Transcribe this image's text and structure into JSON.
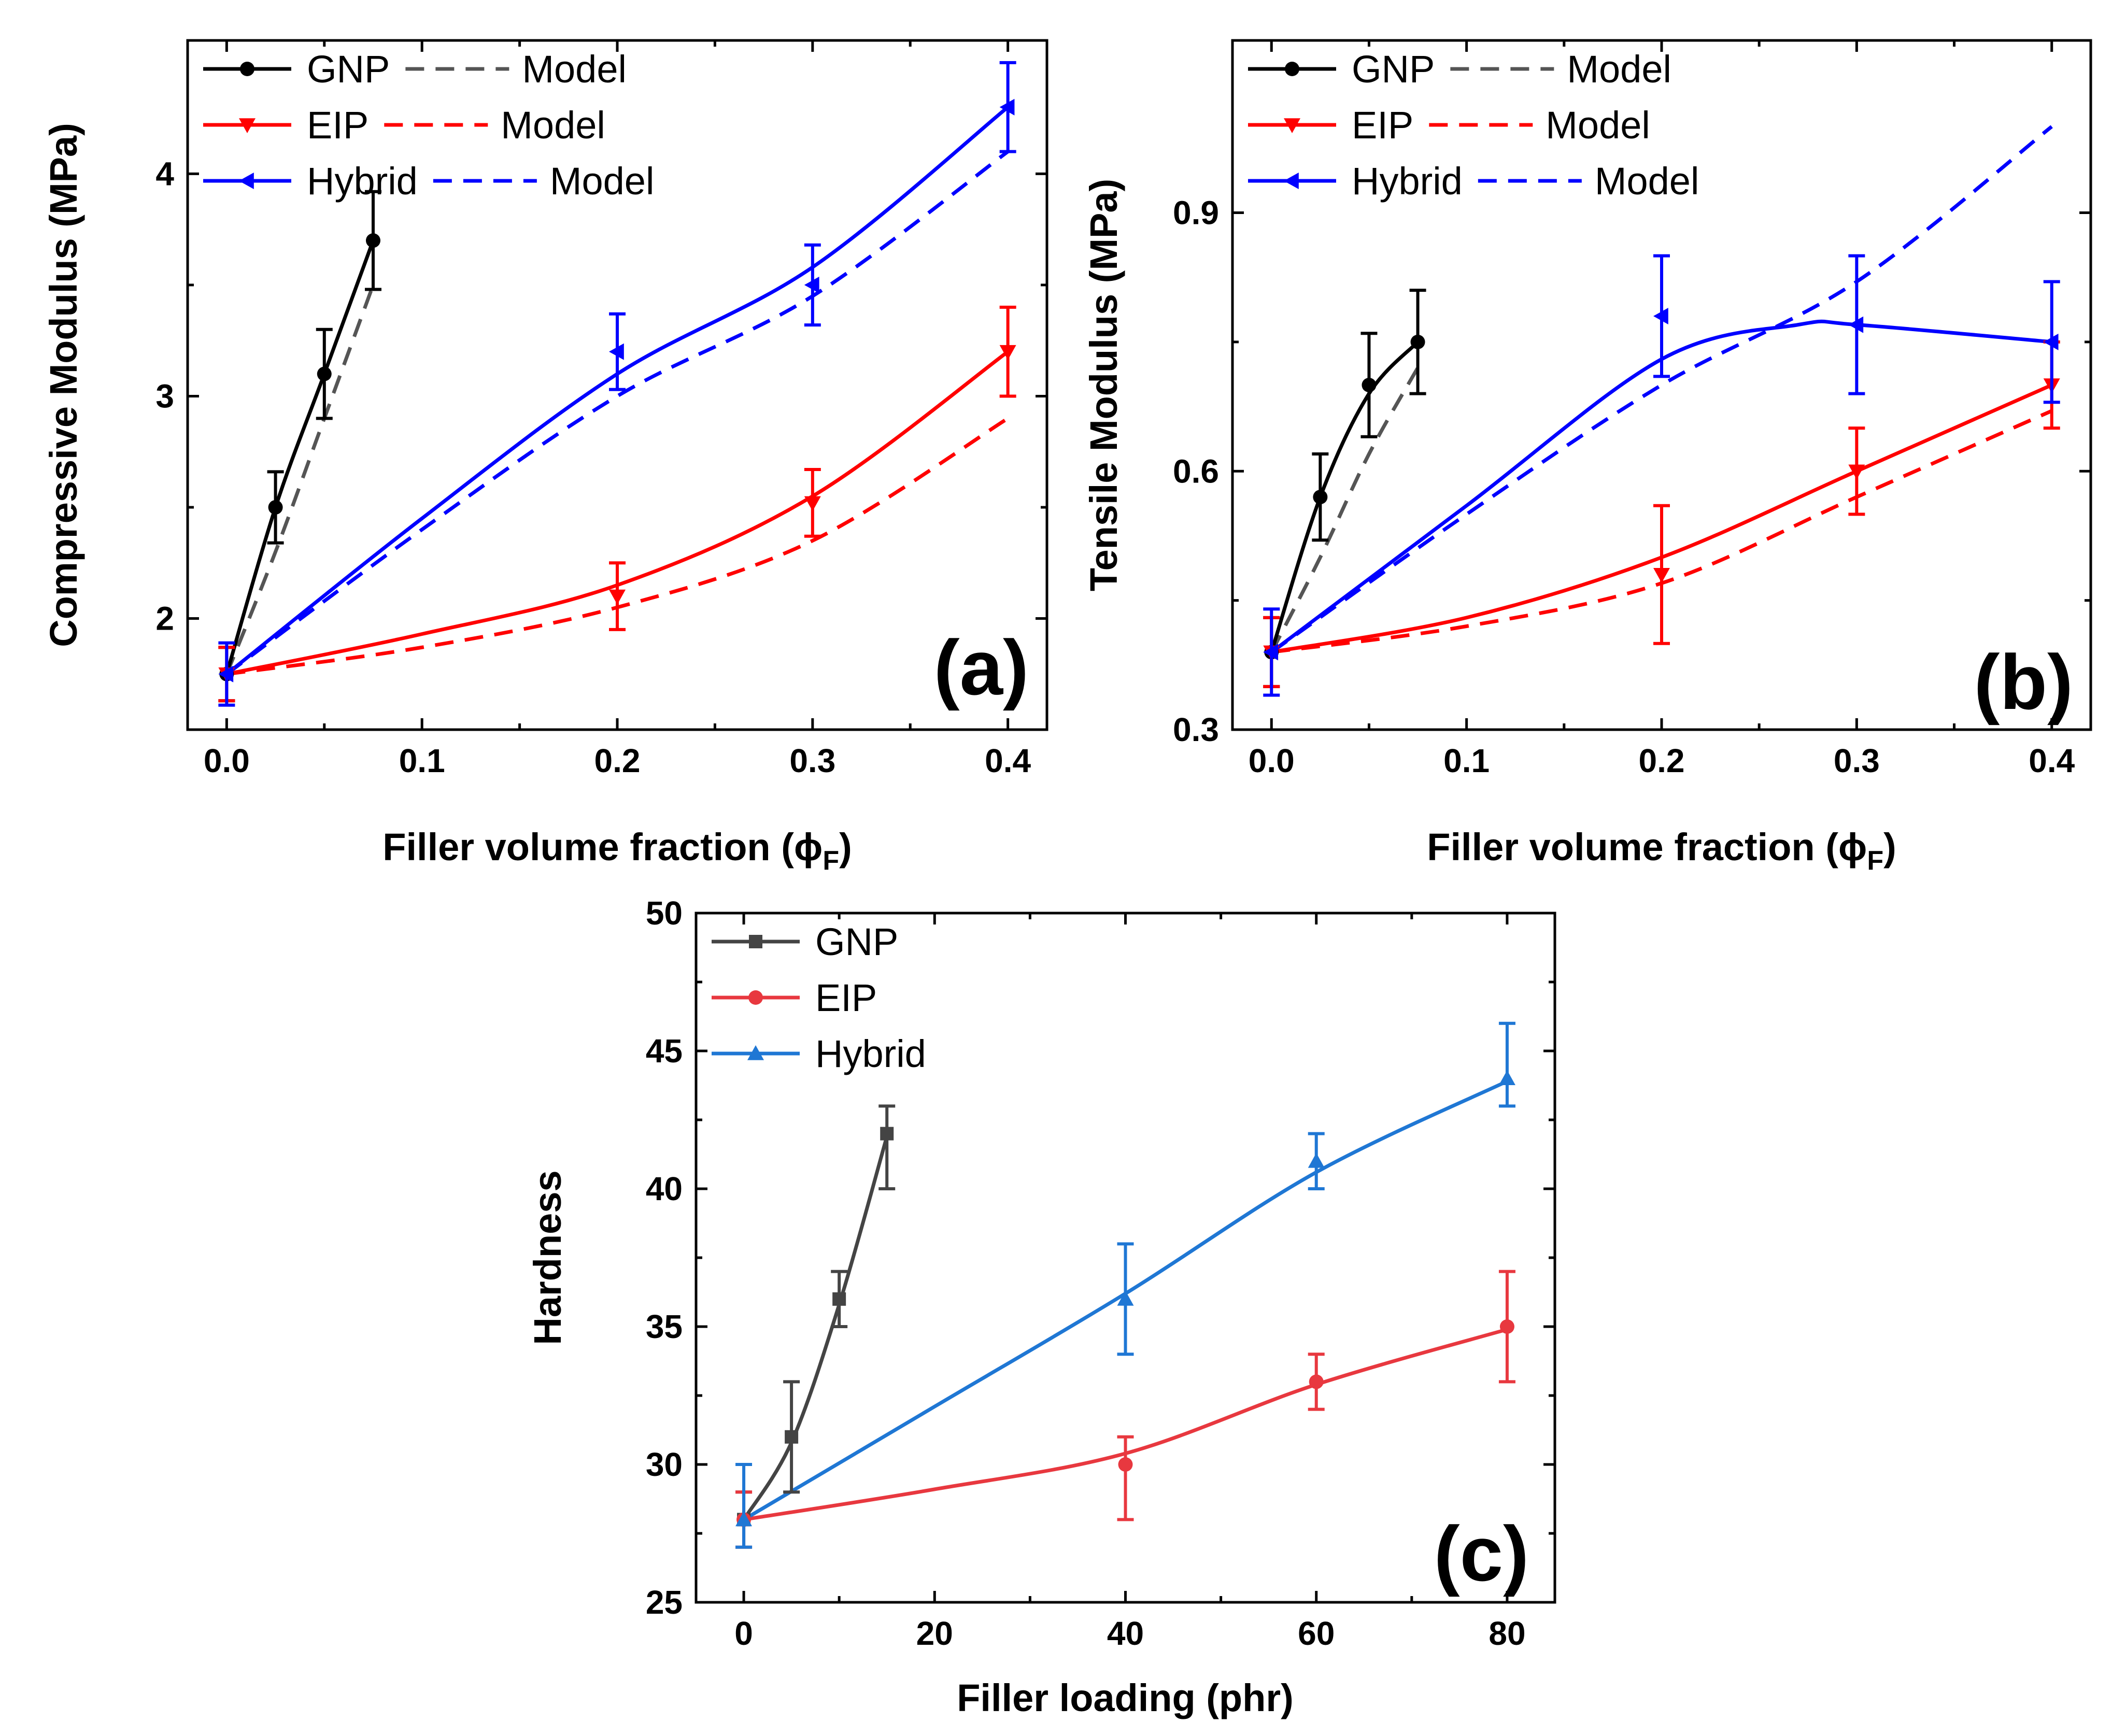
{
  "chart_data": [
    {
      "type": "line",
      "panel_label": "(a)",
      "xlabel": "Filler volume fraction (ϕ",
      "xlabel_sub": "F",
      "xlabel_close": ")",
      "ylabel": "Compressive Modulus (MPa)",
      "xlim": [
        -0.02,
        0.42
      ],
      "ylim": [
        1.5,
        4.6
      ],
      "xticks": [
        0.0,
        0.1,
        0.2,
        0.3,
        0.4
      ],
      "xtick_labels": [
        "0.0",
        "0.1",
        "0.2",
        "0.3",
        "0.4"
      ],
      "yticks": [
        2,
        3,
        4
      ],
      "ytick_labels": [
        "2",
        "3",
        "4"
      ],
      "legend_position": "top-left",
      "series": [
        {
          "name": "GNP",
          "color": "#000000",
          "marker": "circle",
          "x": [
            0.0,
            0.025,
            0.05,
            0.075
          ],
          "y": [
            1.75,
            2.5,
            3.1,
            3.7
          ],
          "err": [
            0.12,
            0.16,
            0.2,
            0.22
          ]
        },
        {
          "name": "EIP",
          "color": "#ff0000",
          "marker": "triangle-down",
          "x": [
            0.0,
            0.2,
            0.3,
            0.4
          ],
          "y": [
            1.75,
            2.1,
            2.52,
            3.2
          ],
          "err": [
            0.12,
            0.15,
            0.15,
            0.2
          ]
        },
        {
          "name": "Hybrid",
          "color": "#0000ff",
          "marker": "triangle-left",
          "x": [
            0.0,
            0.2,
            0.3,
            0.4
          ],
          "y": [
            1.75,
            3.2,
            3.5,
            4.3
          ],
          "err": [
            0.14,
            0.17,
            0.18,
            0.2
          ]
        }
      ],
      "smooth": [
        {
          "name": "GNP",
          "color": "#000000",
          "x": [
            0.0,
            0.025,
            0.05,
            0.075
          ],
          "y": [
            1.75,
            2.5,
            3.1,
            3.7
          ]
        },
        {
          "name": "EIP",
          "color": "#ff0000",
          "x": [
            0.0,
            0.1,
            0.2,
            0.3,
            0.4
          ],
          "y": [
            1.75,
            1.93,
            2.15,
            2.55,
            3.2
          ]
        },
        {
          "name": "Hybrid",
          "color": "#0000ff",
          "x": [
            0.0,
            0.1,
            0.2,
            0.3,
            0.4
          ],
          "y": [
            1.75,
            2.45,
            3.1,
            3.58,
            4.3
          ]
        }
      ],
      "models": [
        {
          "name": "Model",
          "legend": "GNP",
          "color": "#555555",
          "x": [
            0.0,
            0.025,
            0.05,
            0.075
          ],
          "y": [
            1.75,
            2.3,
            2.9,
            3.5
          ]
        },
        {
          "name": "Model",
          "legend": "EIP",
          "color": "#ff0000",
          "x": [
            0.0,
            0.1,
            0.2,
            0.3,
            0.4
          ],
          "y": [
            1.75,
            1.87,
            2.05,
            2.35,
            2.9
          ]
        },
        {
          "name": "Model",
          "legend": "Hybrid",
          "color": "#0000ff",
          "x": [
            0.0,
            0.1,
            0.2,
            0.3,
            0.4
          ],
          "y": [
            1.75,
            2.4,
            3.0,
            3.45,
            4.1
          ]
        }
      ]
    },
    {
      "type": "line",
      "panel_label": "(b)",
      "xlabel": "Filler volume fraction (ϕ",
      "xlabel_sub": "F",
      "xlabel_close": ")",
      "ylabel": "Tensile Modulus (MPa)",
      "xlim": [
        -0.02,
        0.42
      ],
      "ylim": [
        0.3,
        1.1
      ],
      "xticks": [
        0.0,
        0.1,
        0.2,
        0.3,
        0.4
      ],
      "xtick_labels": [
        "0.0",
        "0.1",
        "0.2",
        "0.3",
        "0.4"
      ],
      "yticks": [
        0.3,
        0.6,
        0.9
      ],
      "ytick_labels": [
        "0.3",
        "0.6",
        "0.9"
      ],
      "legend_position": "top-left",
      "series": [
        {
          "name": "GNP",
          "color": "#000000",
          "marker": "circle",
          "x": [
            0.0,
            0.025,
            0.05,
            0.075
          ],
          "y": [
            0.39,
            0.57,
            0.7,
            0.75
          ],
          "err": [
            0.04,
            0.05,
            0.06,
            0.06
          ]
        },
        {
          "name": "EIP",
          "color": "#ff0000",
          "marker": "triangle-down",
          "x": [
            0.0,
            0.2,
            0.3,
            0.4
          ],
          "y": [
            0.39,
            0.48,
            0.6,
            0.7
          ],
          "err": [
            0.04,
            0.08,
            0.05,
            0.05
          ]
        },
        {
          "name": "Hybrid",
          "color": "#0000ff",
          "marker": "triangle-left",
          "x": [
            0.0,
            0.2,
            0.3,
            0.4
          ],
          "y": [
            0.39,
            0.78,
            0.77,
            0.75
          ],
          "err": [
            0.05,
            0.07,
            0.08,
            0.07
          ]
        }
      ],
      "smooth": [
        {
          "name": "GNP",
          "color": "#000000",
          "x": [
            0.0,
            0.025,
            0.05,
            0.075
          ],
          "y": [
            0.39,
            0.57,
            0.69,
            0.75
          ]
        },
        {
          "name": "EIP",
          "color": "#ff0000",
          "x": [
            0.0,
            0.1,
            0.2,
            0.3,
            0.4
          ],
          "y": [
            0.39,
            0.43,
            0.5,
            0.6,
            0.7
          ]
        },
        {
          "name": "Hybrid",
          "color": "#0000ff",
          "x": [
            0.0,
            0.1,
            0.2,
            0.27,
            0.3,
            0.4
          ],
          "y": [
            0.39,
            0.56,
            0.73,
            0.77,
            0.77,
            0.75
          ]
        }
      ],
      "models": [
        {
          "name": "Model",
          "legend": "GNP",
          "color": "#555555",
          "x": [
            0.0,
            0.025,
            0.05,
            0.075
          ],
          "y": [
            0.39,
            0.5,
            0.62,
            0.72
          ]
        },
        {
          "name": "Model",
          "legend": "EIP",
          "color": "#ff0000",
          "x": [
            0.0,
            0.1,
            0.2,
            0.3,
            0.4
          ],
          "y": [
            0.39,
            0.42,
            0.47,
            0.57,
            0.67
          ]
        },
        {
          "name": "Model",
          "legend": "Hybrid",
          "color": "#0000ff",
          "x": [
            0.0,
            0.1,
            0.2,
            0.3,
            0.4
          ],
          "y": [
            0.39,
            0.55,
            0.7,
            0.82,
            1.0
          ]
        }
      ]
    },
    {
      "type": "line",
      "panel_label": "(c)",
      "xlabel": "Filler loading (phr)",
      "ylabel": "Hardness",
      "xlim": [
        -5,
        85
      ],
      "ylim": [
        25,
        50
      ],
      "xticks": [
        0,
        20,
        40,
        60,
        80
      ],
      "xtick_labels": [
        "0",
        "20",
        "40",
        "60",
        "80"
      ],
      "yticks": [
        25,
        30,
        35,
        40,
        45,
        50
      ],
      "ytick_labels": [
        "25",
        "30",
        "35",
        "40",
        "45",
        "50"
      ],
      "legend_position": "top-left",
      "series": [
        {
          "name": "GNP",
          "color": "#444444",
          "marker": "square",
          "x": [
            0,
            5,
            10,
            15
          ],
          "y": [
            28,
            31,
            36,
            42
          ],
          "err": [
            1,
            2,
            1,
            1
          ],
          "err_low": [
            1,
            2,
            1,
            2
          ]
        },
        {
          "name": "EIP",
          "color": "#e8383f",
          "marker": "circle",
          "x": [
            0,
            40,
            60,
            80
          ],
          "y": [
            28,
            30,
            33,
            35
          ],
          "err": [
            1,
            1,
            1,
            2
          ],
          "err_low": [
            1,
            2,
            1,
            2
          ]
        },
        {
          "name": "Hybrid",
          "color": "#1f77d4",
          "marker": "triangle-up",
          "x": [
            0,
            40,
            60,
            80
          ],
          "y": [
            28,
            36,
            41,
            44
          ],
          "err": [
            2,
            2,
            1,
            2
          ],
          "err_low": [
            1,
            2,
            1,
            1
          ]
        }
      ],
      "smooth": [
        {
          "name": "GNP",
          "color": "#444444",
          "x": [
            0,
            5,
            10,
            15
          ],
          "y": [
            28,
            30.8,
            35.8,
            41.9
          ]
        },
        {
          "name": "EIP",
          "color": "#e8383f",
          "x": [
            0,
            20,
            40,
            60,
            80
          ],
          "y": [
            28,
            29.1,
            30.4,
            32.9,
            34.9
          ]
        },
        {
          "name": "Hybrid",
          "color": "#1f77d4",
          "x": [
            0,
            20,
            40,
            60,
            80
          ],
          "y": [
            28,
            32.1,
            36.2,
            40.6,
            43.9
          ]
        }
      ]
    }
  ]
}
